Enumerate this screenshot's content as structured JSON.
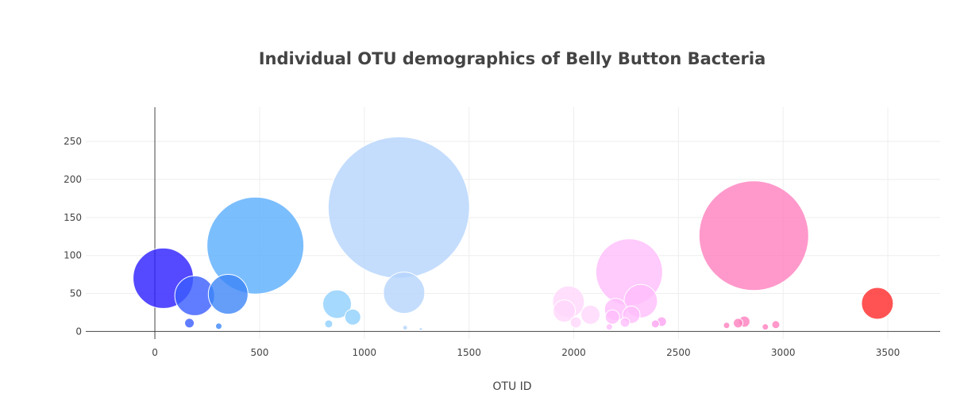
{
  "chart_data": {
    "type": "scatter",
    "title": "Individual OTU demographics of Belly Button Bacteria",
    "xlabel": "OTU ID",
    "ylabel": "",
    "xlim": [
      -330,
      3750
    ],
    "ylim": [
      -10,
      295
    ],
    "xticks": [
      0,
      500,
      1000,
      1500,
      2000,
      2500,
      3000,
      3500
    ],
    "yticks": [
      0,
      50,
      100,
      150,
      200,
      250
    ],
    "grid": true,
    "legend": "none",
    "series": [
      {
        "points": [
          {
            "x": 40,
            "y": 70,
            "r": 38,
            "color": "#2a1dff"
          },
          {
            "x": 190,
            "y": 47,
            "r": 25,
            "color": "#3a5cff"
          },
          {
            "x": 165,
            "y": 11,
            "r": 6,
            "color": "#3a5cff"
          },
          {
            "x": 350,
            "y": 49,
            "r": 25,
            "color": "#3d86f7"
          },
          {
            "x": 305,
            "y": 7,
            "r": 4,
            "color": "#3d86f7"
          },
          {
            "x": 480,
            "y": 113,
            "r": 61,
            "color": "#5aaefe"
          },
          {
            "x": 870,
            "y": 36,
            "r": 18,
            "color": "#8fd0fd"
          },
          {
            "x": 945,
            "y": 19,
            "r": 10,
            "color": "#8fd0fd"
          },
          {
            "x": 830,
            "y": 10,
            "r": 5,
            "color": "#8fd0fd"
          },
          {
            "x": 1165,
            "y": 163,
            "r": 89,
            "color": "#b5d4fd"
          },
          {
            "x": 1190,
            "y": 51,
            "r": 26,
            "color": "#b5d4fd"
          },
          {
            "x": 1195,
            "y": 5,
            "r": 3,
            "color": "#b5d4fd"
          },
          {
            "x": 1270,
            "y": 3,
            "r": 2,
            "color": "#b5d4fd"
          },
          {
            "x": 1975,
            "y": 39,
            "r": 20,
            "color": "#ffd7fb"
          },
          {
            "x": 1955,
            "y": 27,
            "r": 14,
            "color": "#ffd7fb"
          },
          {
            "x": 2010,
            "y": 12,
            "r": 7,
            "color": "#ffd7fb"
          },
          {
            "x": 2080,
            "y": 22,
            "r": 12,
            "color": "#ffd7fb"
          },
          {
            "x": 2265,
            "y": 78,
            "r": 42,
            "color": "#ffbdfb"
          },
          {
            "x": 2320,
            "y": 40,
            "r": 21,
            "color": "#ffbdfb"
          },
          {
            "x": 2200,
            "y": 29,
            "r": 14,
            "color": "#ffbdfb"
          },
          {
            "x": 2275,
            "y": 22,
            "r": 11,
            "color": "#ffbdfb"
          },
          {
            "x": 2185,
            "y": 19,
            "r": 9,
            "color": "#ffbdfb"
          },
          {
            "x": 2245,
            "y": 12,
            "r": 6,
            "color": "#ffbdfb"
          },
          {
            "x": 2170,
            "y": 6,
            "r": 4,
            "color": "#ffbdfb"
          },
          {
            "x": 2420,
            "y": 13,
            "r": 6,
            "color": "#fca3f0"
          },
          {
            "x": 2390,
            "y": 10,
            "r": 5,
            "color": "#fca3f0"
          },
          {
            "x": 2860,
            "y": 126,
            "r": 69,
            "color": "#ff7fbe"
          },
          {
            "x": 2815,
            "y": 13,
            "r": 7,
            "color": "#ff7fbe"
          },
          {
            "x": 2785,
            "y": 11,
            "r": 6,
            "color": "#ff7fbe"
          },
          {
            "x": 2730,
            "y": 8,
            "r": 4,
            "color": "#ff7fbe"
          },
          {
            "x": 2965,
            "y": 9,
            "r": 5,
            "color": "#ff7fbe"
          },
          {
            "x": 2915,
            "y": 6,
            "r": 4,
            "color": "#ff7fbe"
          },
          {
            "x": 3450,
            "y": 37,
            "r": 20,
            "color": "#ff2828"
          }
        ]
      }
    ]
  }
}
